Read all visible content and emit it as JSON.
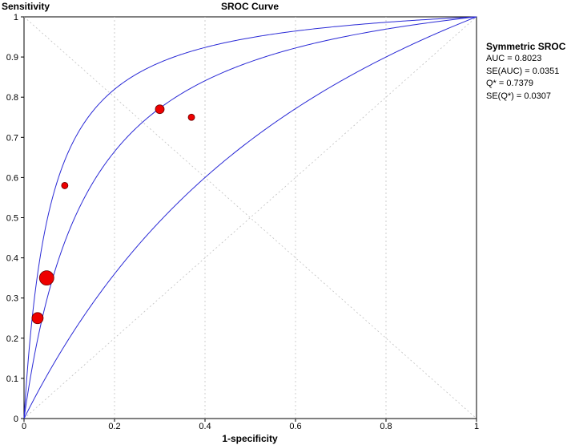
{
  "chart_data": {
    "type": "scatter",
    "title": "SROC Curve",
    "xlabel": "1-specificity",
    "ylabel": "Sensitivity",
    "xlim": [
      0,
      1
    ],
    "ylim": [
      0,
      1
    ],
    "x_ticks": [
      "0",
      "0.2",
      "0.4",
      "0.6",
      "0.8",
      "1"
    ],
    "y_ticks": [
      "0",
      "0.1",
      "0.2",
      "0.3",
      "0.4",
      "0.5",
      "0.6",
      "0.7",
      "0.8",
      "0.9",
      "1"
    ],
    "grid": "dotted diagonals",
    "points": [
      {
        "x": 0.03,
        "y": 0.25,
        "size": "large"
      },
      {
        "x": 0.05,
        "y": 0.35,
        "size": "largest"
      },
      {
        "x": 0.09,
        "y": 0.58,
        "size": "small"
      },
      {
        "x": 0.3,
        "y": 0.77,
        "size": "medium"
      },
      {
        "x": 0.37,
        "y": 0.75,
        "size": "small"
      }
    ],
    "curves": [
      {
        "role": "upper confidence band",
        "Q": 0.81
      },
      {
        "role": "symmetric SROC",
        "Q": 0.7379
      },
      {
        "role": "lower confidence band",
        "Q": 0.6
      }
    ],
    "colors": {
      "curve": "#2a2ad6",
      "point_fill": "#ee0000",
      "point_stroke": "#660000",
      "grid": "#c0c0c0"
    }
  },
  "summary": {
    "heading": "Symmetric SROC",
    "auc": "AUC = 0.8023",
    "se_auc": "SE(AUC) = 0.0351",
    "q": "Q* = 0.7379",
    "se_q": "SE(Q*) = 0.0307"
  }
}
